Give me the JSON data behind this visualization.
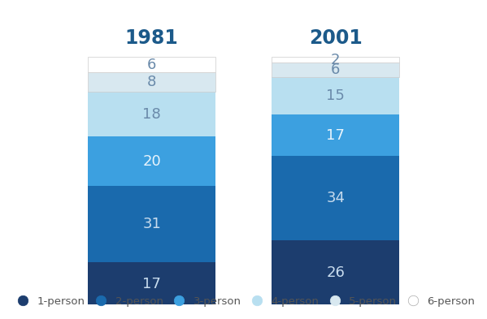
{
  "title_1981": "1981",
  "title_2001": "2001",
  "categories": [
    "1-person",
    "2-person",
    "3-person",
    "4-person",
    "5-person",
    "6-person"
  ],
  "values_1981": [
    17,
    31,
    20,
    18,
    8,
    6
  ],
  "values_2001": [
    26,
    34,
    17,
    15,
    6,
    2
  ],
  "colors": [
    "#1c3d6e",
    "#1a6aad",
    "#3ca0e0",
    "#b8dff0",
    "#d8e8f0",
    "#ffffff"
  ],
  "text_colors_1981": [
    "#c8dcee",
    "#c8dcee",
    "#e8f4fc",
    "#6a8aaa",
    "#6a8aaa",
    "#6a8aaa"
  ],
  "text_colors_2001": [
    "#c8dcee",
    "#c8dcee",
    "#e8f4fc",
    "#6a8aaa",
    "#6a8aaa",
    "#6a8aaa"
  ],
  "background_color": "#ffffff",
  "title_color": "#1c5a8a",
  "title_fontsize": 17,
  "label_fontsize": 13,
  "legend_fontsize": 9.5
}
